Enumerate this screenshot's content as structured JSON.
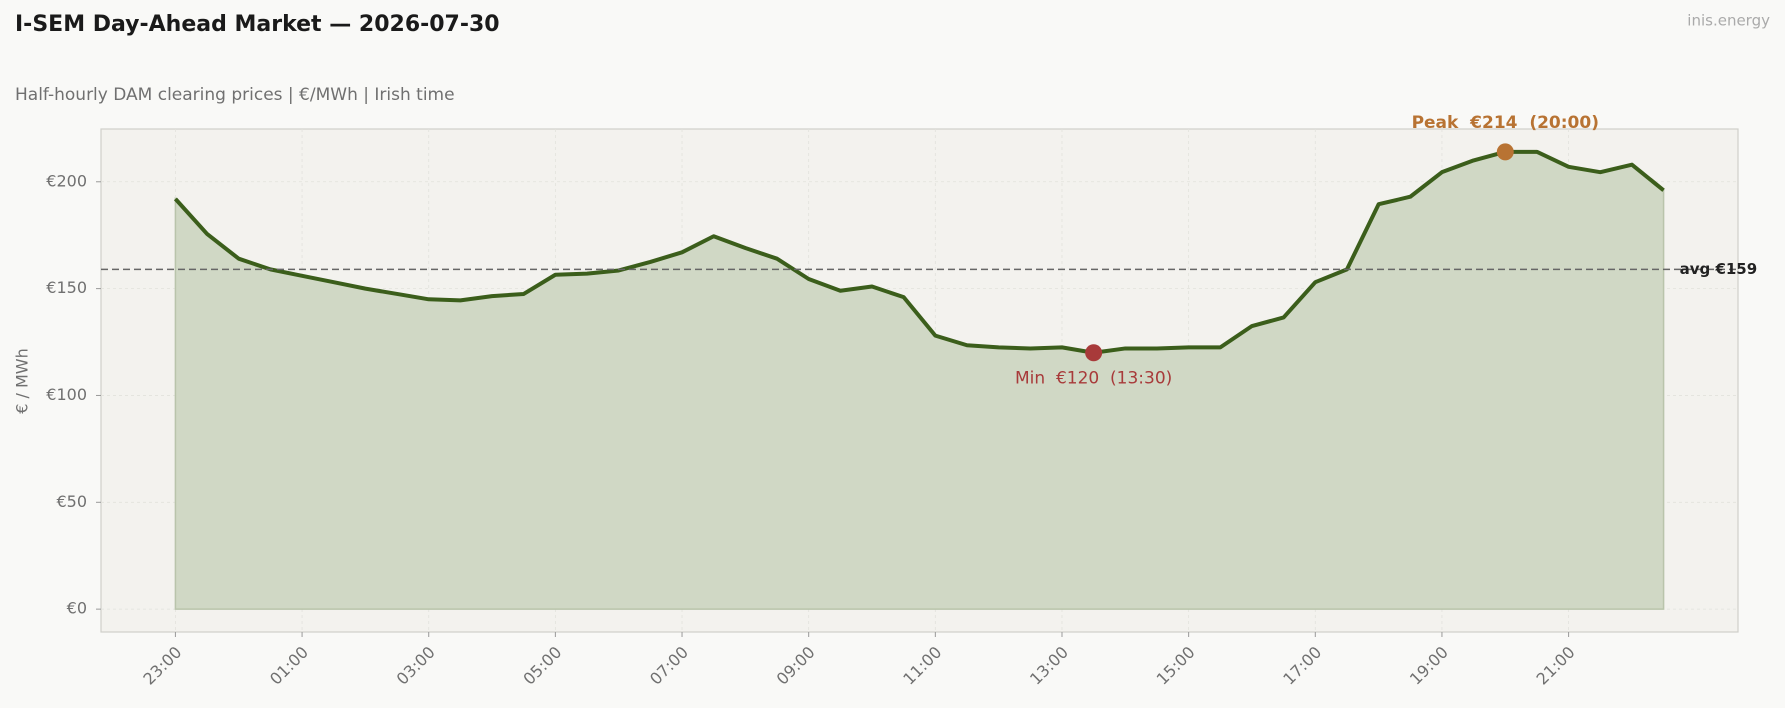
{
  "chart_data": {
    "type": "line",
    "title": "I-SEM Day-Ahead Market — 2026-07-30",
    "subtitle": "Half-hourly DAM clearing prices  |  €/MWh  |  Irish time",
    "watermark": "inis.energy",
    "y_label": "€ / MWh",
    "categories": [
      "23:00",
      null,
      null,
      null,
      "01:00",
      null,
      null,
      null,
      "03:00",
      null,
      null,
      null,
      "05:00",
      null,
      null,
      null,
      "07:00",
      null,
      null,
      null,
      "09:00",
      null,
      null,
      null,
      "11:00",
      null,
      null,
      null,
      "13:00",
      null,
      null,
      null,
      "15:00",
      null,
      null,
      null,
      "17:00",
      null,
      null,
      null,
      "19:00",
      null,
      null,
      null,
      "21:00",
      null,
      null,
      null
    ],
    "series": [
      {
        "name": "DAM price",
        "color": "#3b5e1b",
        "fill": "#d0d8c5",
        "values": [
          192,
          175.6,
          164,
          159,
          156,
          153,
          150,
          147.5,
          145,
          144.5,
          146.5,
          147.5,
          156.5,
          157,
          158.5,
          162.5,
          167,
          174.5,
          169,
          164,
          154.5,
          149,
          151,
          146,
          128,
          123.5,
          122.5,
          122,
          122.5,
          120,
          122,
          122,
          122.5,
          122.5,
          132.5,
          136.5,
          153,
          159,
          189.5,
          193,
          204.5,
          210,
          214,
          214,
          207,
          204.5,
          208,
          196
        ]
      }
    ],
    "ylim": [
      -10.7,
      224.7
    ],
    "yticks": [
      {
        "value": 0,
        "label": "€0"
      },
      {
        "value": 50,
        "label": "€50"
      },
      {
        "value": 100,
        "label": "€100"
      },
      {
        "value": 150,
        "label": "€150"
      },
      {
        "value": 200,
        "label": "€200"
      }
    ],
    "grid": true,
    "reference_line": {
      "value": 159,
      "label": "avg €159",
      "color": "#666666"
    },
    "annotations": [
      {
        "text": "Peak  €214  (20:00)",
        "value": 214,
        "color": "#b87333",
        "position": "above"
      },
      {
        "text": "Min  €120  (13:30)",
        "value": 120,
        "color": "#a83a3a",
        "position": "below"
      }
    ]
  }
}
